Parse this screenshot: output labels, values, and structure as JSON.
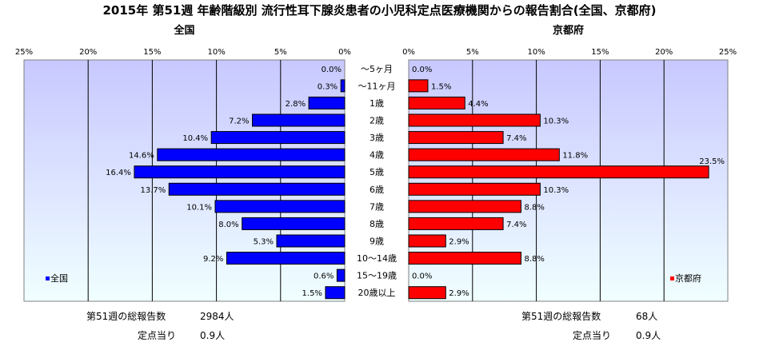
{
  "title": "2015年 第51週 年齢階級別 流行性耳下腺炎患者の小児科定点医療機関からの報告割合(全国、京都府)",
  "colors": {
    "national": "#0000ff",
    "kyoto": "#ff0000",
    "plot_bg_top": "#c8c8ff",
    "plot_bg_bottom": "#f0ffff"
  },
  "chart_data": {
    "type": "bar",
    "orientation": "horizontal",
    "categories": [
      "～5ヶ月",
      "～11ヶ月",
      "1歳",
      "2歳",
      "3歳",
      "4歳",
      "5歳",
      "6歳",
      "7歳",
      "8歳",
      "9歳",
      "10～14歳",
      "15～19歳",
      "20歳以上"
    ],
    "ticks": [
      "0%",
      "5%",
      "10%",
      "15%",
      "20%",
      "25%"
    ],
    "xlim": [
      0,
      25
    ],
    "grid": true,
    "series": [
      {
        "name": "全国",
        "panel_title": "全国",
        "legend": "全国",
        "values": [
          0.0,
          0.3,
          2.8,
          7.2,
          10.4,
          14.6,
          16.4,
          13.7,
          10.1,
          8.0,
          5.3,
          9.2,
          0.6,
          1.5
        ],
        "labels": [
          "0.0%",
          "0.3%",
          "2.8%",
          "7.2%",
          "10.4%",
          "14.6%",
          "16.4%",
          "13.7%",
          "10.1%",
          "8.0%",
          "5.3%",
          "9.2%",
          "0.6%",
          "1.5%"
        ]
      },
      {
        "name": "京都府",
        "panel_title": "京都府",
        "legend": "京都府",
        "values": [
          0.0,
          1.5,
          4.4,
          10.3,
          7.4,
          11.8,
          23.5,
          10.3,
          8.8,
          7.4,
          2.9,
          8.8,
          0.0,
          2.9
        ],
        "labels": [
          "0.0%",
          "1.5%",
          "4.4%",
          "10.3%",
          "7.4%",
          "11.8%",
          "23.5%",
          "10.3%",
          "8.8%",
          "7.4%",
          "2.9%",
          "8.8%",
          "0.0%",
          "2.9%"
        ]
      }
    ],
    "legend_position": "bottom-left / bottom-right"
  },
  "stats": {
    "national": {
      "total_label": "第51週の総報告数",
      "total_value": "2984人",
      "per_label": "定点当り",
      "per_value": "0.9人"
    },
    "kyoto": {
      "total_label": "第51週の総報告数",
      "total_value": "68人",
      "per_label": "定点当り",
      "per_value": "0.9人"
    }
  }
}
